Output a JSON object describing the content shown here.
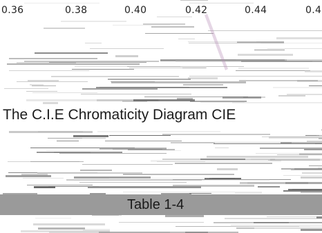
{
  "axis": {
    "ticks": [
      "0.36",
      "0.38",
      "0.40",
      "0.42",
      "0.44",
      "0.4"
    ]
  },
  "caption": "The C.I.E Chromaticity Diagram CIE",
  "table_label": "Table 1-4",
  "colors": {
    "background": "#ffffff",
    "streak_dark": "#5a5a5a",
    "streak_mid": "#8a8a8a",
    "streak_light": "#c4c4c4",
    "band": "#9a9a9a",
    "text": "#1c1c1c"
  }
}
